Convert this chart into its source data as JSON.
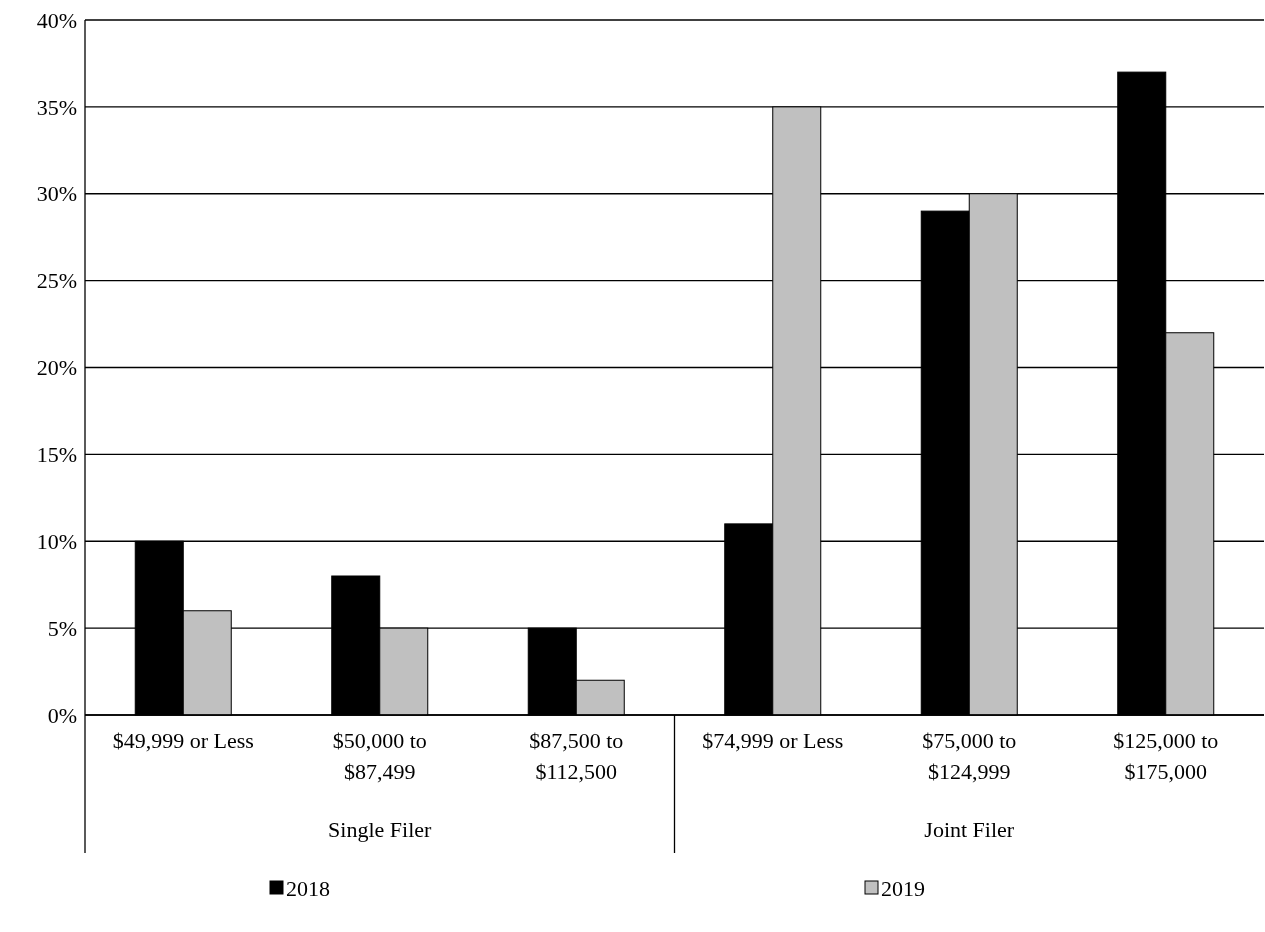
{
  "chart_data": {
    "type": "bar",
    "categories": [
      "$49,999 or Less",
      "$50,000 to $87,499",
      "$87,500 to $112,500",
      "$74,999 or Less",
      "$75,000 to $124,999",
      "$125,000 to $175,000"
    ],
    "series": [
      {
        "name": "2018",
        "color": "#000000",
        "values": [
          10,
          8,
          5,
          11,
          29,
          37
        ]
      },
      {
        "name": "2019",
        "color": "#c0c0c0",
        "values": [
          6,
          5,
          2,
          35,
          30,
          22
        ]
      }
    ],
    "annotations": [
      "Single Filer",
      "Joint Filer"
    ],
    "ylim": [
      0,
      40
    ],
    "yticks": [
      {
        "value": 0,
        "label": "0%"
      },
      {
        "value": 5,
        "label": "5%"
      },
      {
        "value": 10,
        "label": "10%"
      },
      {
        "value": 15,
        "label": "15%"
      },
      {
        "value": 20,
        "label": "20%"
      },
      {
        "value": 25,
        "label": "25%"
      },
      {
        "value": 30,
        "label": "30%"
      },
      {
        "value": 35,
        "label": "35%"
      },
      {
        "value": 40,
        "label": "40%"
      }
    ],
    "grid": "y",
    "legend": "bottom"
  }
}
